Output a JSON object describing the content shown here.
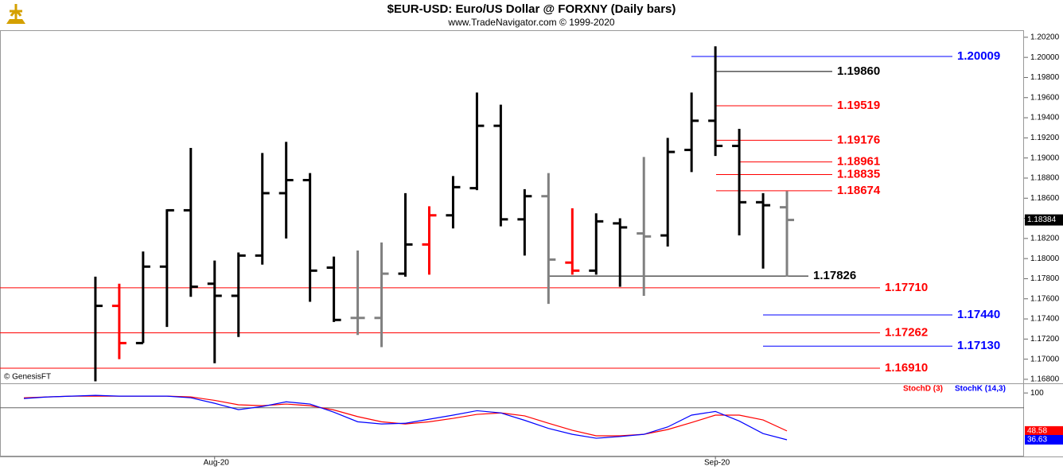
{
  "chart_data": [
    {
      "type": "ohlc",
      "title": "$EUR-USD:  Euro/US Dollar @ FORXNY  (Daily bars)",
      "subtitle": "www.TradeNavigator.com © 1999-2020",
      "copyright": "© GenesisFT",
      "categories": [
        null,
        null,
        null,
        null,
        null,
        null,
        null,
        null,
        "Aug-20",
        null,
        null,
        null,
        null,
        null,
        null,
        null,
        null,
        null,
        null,
        null,
        null,
        null,
        null,
        null,
        null,
        null,
        null,
        null,
        null,
        "Sep-20",
        null,
        null,
        null
      ],
      "open": [
        null,
        null,
        null,
        null,
        1.1753,
        1.1716,
        1.1792,
        1.1848,
        1.1775,
        1.1763,
        1.1803,
        1.1865,
        1.1878,
        1.1791,
        1.1741,
        1.1741,
        1.1785,
        1.1814,
        1.1843,
        1.187,
        1.1932,
        1.1839,
        1.1862,
        1.1796,
        1.1788,
        1.1835,
        1.1825,
        1.1823,
        1.1908,
        1.1937,
        1.1912,
        1.1856,
        1.1851
      ],
      "high": [
        null,
        null,
        null,
        1.1782,
        1.1775,
        1.1807,
        1.1849,
        1.191,
        1.1798,
        1.1806,
        1.1905,
        1.1916,
        1.1885,
        1.1802,
        1.1808,
        1.1816,
        1.1865,
        1.1852,
        1.1882,
        1.1965,
        1.1953,
        1.1869,
        1.1885,
        1.185,
        1.1845,
        1.184,
        1.1901,
        1.192,
        1.1965,
        1.2011,
        1.1929,
        1.1865,
        1.1867
      ],
      "low": [
        null,
        null,
        null,
        1.1678,
        1.17,
        1.1716,
        1.1732,
        1.1762,
        1.1696,
        1.1722,
        1.1794,
        1.182,
        1.1757,
        1.1737,
        1.1724,
        1.1712,
        1.1782,
        1.1784,
        1.183,
        1.1868,
        1.1832,
        1.1803,
        1.1755,
        1.1784,
        1.1784,
        1.1772,
        1.1763,
        1.1812,
        1.1886,
        1.1902,
        1.1823,
        1.179,
        1.1782
      ],
      "close": [
        null,
        null,
        null,
        1.1753,
        1.1716,
        1.1792,
        1.1848,
        1.1772,
        1.1763,
        1.1803,
        1.1865,
        1.1878,
        1.1788,
        1.1739,
        1.1741,
        1.1785,
        1.1814,
        1.1843,
        1.1871,
        1.1932,
        1.1839,
        1.1862,
        1.1799,
        1.1788,
        1.1837,
        1.1831,
        1.1822,
        1.1906,
        1.1937,
        1.1912,
        1.1856,
        1.1853,
        1.18384
      ],
      "colors": [
        null,
        null,
        null,
        "#000000",
        "#ff0000",
        "#000000",
        "#000000",
        "#000000",
        "#000000",
        "#000000",
        "#000000",
        "#000000",
        "#000000",
        "#000000",
        "#808080",
        "#808080",
        "#000000",
        "#ff0000",
        "#000000",
        "#000000",
        "#000000",
        "#000000",
        "#808080",
        "#ff0000",
        "#000000",
        "#000000",
        "#808080",
        "#000000",
        "#000000",
        "#000000",
        "#000000",
        "#000000",
        "#808080"
      ],
      "ylim": [
        1.1676,
        1.2027
      ],
      "yticks": [
        {
          "value": 1.168,
          "label": "1.16800"
        },
        {
          "value": 1.17,
          "label": "1.17000"
        },
        {
          "value": 1.172,
          "label": "1.17200"
        },
        {
          "value": 1.174,
          "label": "1.17400"
        },
        {
          "value": 1.176,
          "label": "1.17600"
        },
        {
          "value": 1.178,
          "label": "1.17800"
        },
        {
          "value": 1.18,
          "label": "1.18000"
        },
        {
          "value": 1.182,
          "label": "1.18200"
        },
        {
          "value": 1.184,
          "label": "1.18400"
        },
        {
          "value": 1.186,
          "label": "1.18600"
        },
        {
          "value": 1.188,
          "label": "1.18800"
        },
        {
          "value": 1.19,
          "label": "1.19000"
        },
        {
          "value": 1.192,
          "label": "1.19200"
        },
        {
          "value": 1.194,
          "label": "1.19400"
        },
        {
          "value": 1.196,
          "label": "1.19600"
        },
        {
          "value": 1.198,
          "label": "1.19800"
        },
        {
          "value": 1.2,
          "label": "1.20000"
        },
        {
          "value": 1.202,
          "label": "1.20200"
        }
      ],
      "levels": [
        {
          "value": 1.20009,
          "label": "1.20009",
          "color": "#0000ff"
        },
        {
          "value": 1.1986,
          "label": "1.19860",
          "color": "#000000"
        },
        {
          "value": 1.19519,
          "label": "1.19519",
          "color": "#ff0000"
        },
        {
          "value": 1.19176,
          "label": "1.19176",
          "color": "#ff0000"
        },
        {
          "value": 1.18961,
          "label": "1.18961",
          "color": "#ff0000"
        },
        {
          "value": 1.18835,
          "label": "1.18835",
          "color": "#ff0000"
        },
        {
          "value": 1.18674,
          "label": "1.18674",
          "color": "#ff0000"
        },
        {
          "value": 1.17826,
          "label": "1.17826",
          "color": "#000000"
        },
        {
          "value": 1.1771,
          "label": "1.17710",
          "color": "#ff0000"
        },
        {
          "value": 1.1744,
          "label": "1.17440",
          "color": "#0000ff"
        },
        {
          "value": 1.17262,
          "label": "1.17262",
          "color": "#ff0000"
        },
        {
          "value": 1.1713,
          "label": "1.17130",
          "color": "#0000ff"
        },
        {
          "value": 1.1691,
          "label": "1.16910",
          "color": "#ff0000"
        }
      ]
    },
    {
      "type": "line",
      "series": [
        {
          "name": "StochD (3)",
          "color": "#ff0000",
          "values": [
            93.5,
            94.6,
            95.7,
            95.7,
            95.7,
            95.7,
            95.7,
            94.6,
            90,
            84,
            82.8,
            85,
            82.8,
            77,
            68,
            61,
            58,
            61,
            65.6,
            71,
            73,
            69,
            59,
            49.5,
            42,
            42,
            44,
            50.5,
            60,
            70,
            70,
            63.5,
            48.58
          ]
        },
        {
          "name": "StochK (14,3)",
          "color": "#0000ff",
          "values": [
            92.5,
            94.6,
            95.7,
            96.8,
            95.7,
            95.7,
            95.7,
            93.5,
            86,
            77.4,
            81.7,
            88,
            85,
            74,
            61,
            58,
            59,
            64.5,
            70,
            76,
            73,
            63,
            52,
            44,
            38.7,
            41,
            44,
            54,
            70,
            75,
            62,
            45,
            36.63
          ]
        }
      ],
      "ylim": [
        14,
        112
      ],
      "yticks": [
        100
      ],
      "hline": 80
    }
  ]
}
